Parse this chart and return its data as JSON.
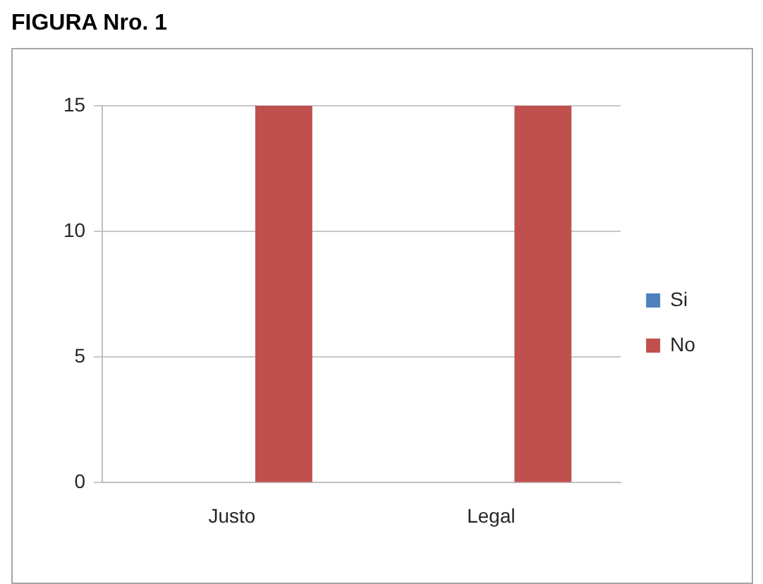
{
  "chart_data": {
    "type": "bar",
    "title": "FIGURA Nro. 1",
    "categories": [
      "Justo",
      "Legal"
    ],
    "series": [
      {
        "name": "Si",
        "color": "#4f81bd",
        "values": [
          0,
          0
        ]
      },
      {
        "name": "No",
        "color": "#c0504d",
        "values": [
          15,
          15
        ]
      }
    ],
    "ylim": [
      0,
      15
    ],
    "yticks": [
      0,
      5,
      10,
      15
    ],
    "grid": "y",
    "legend": "right"
  }
}
